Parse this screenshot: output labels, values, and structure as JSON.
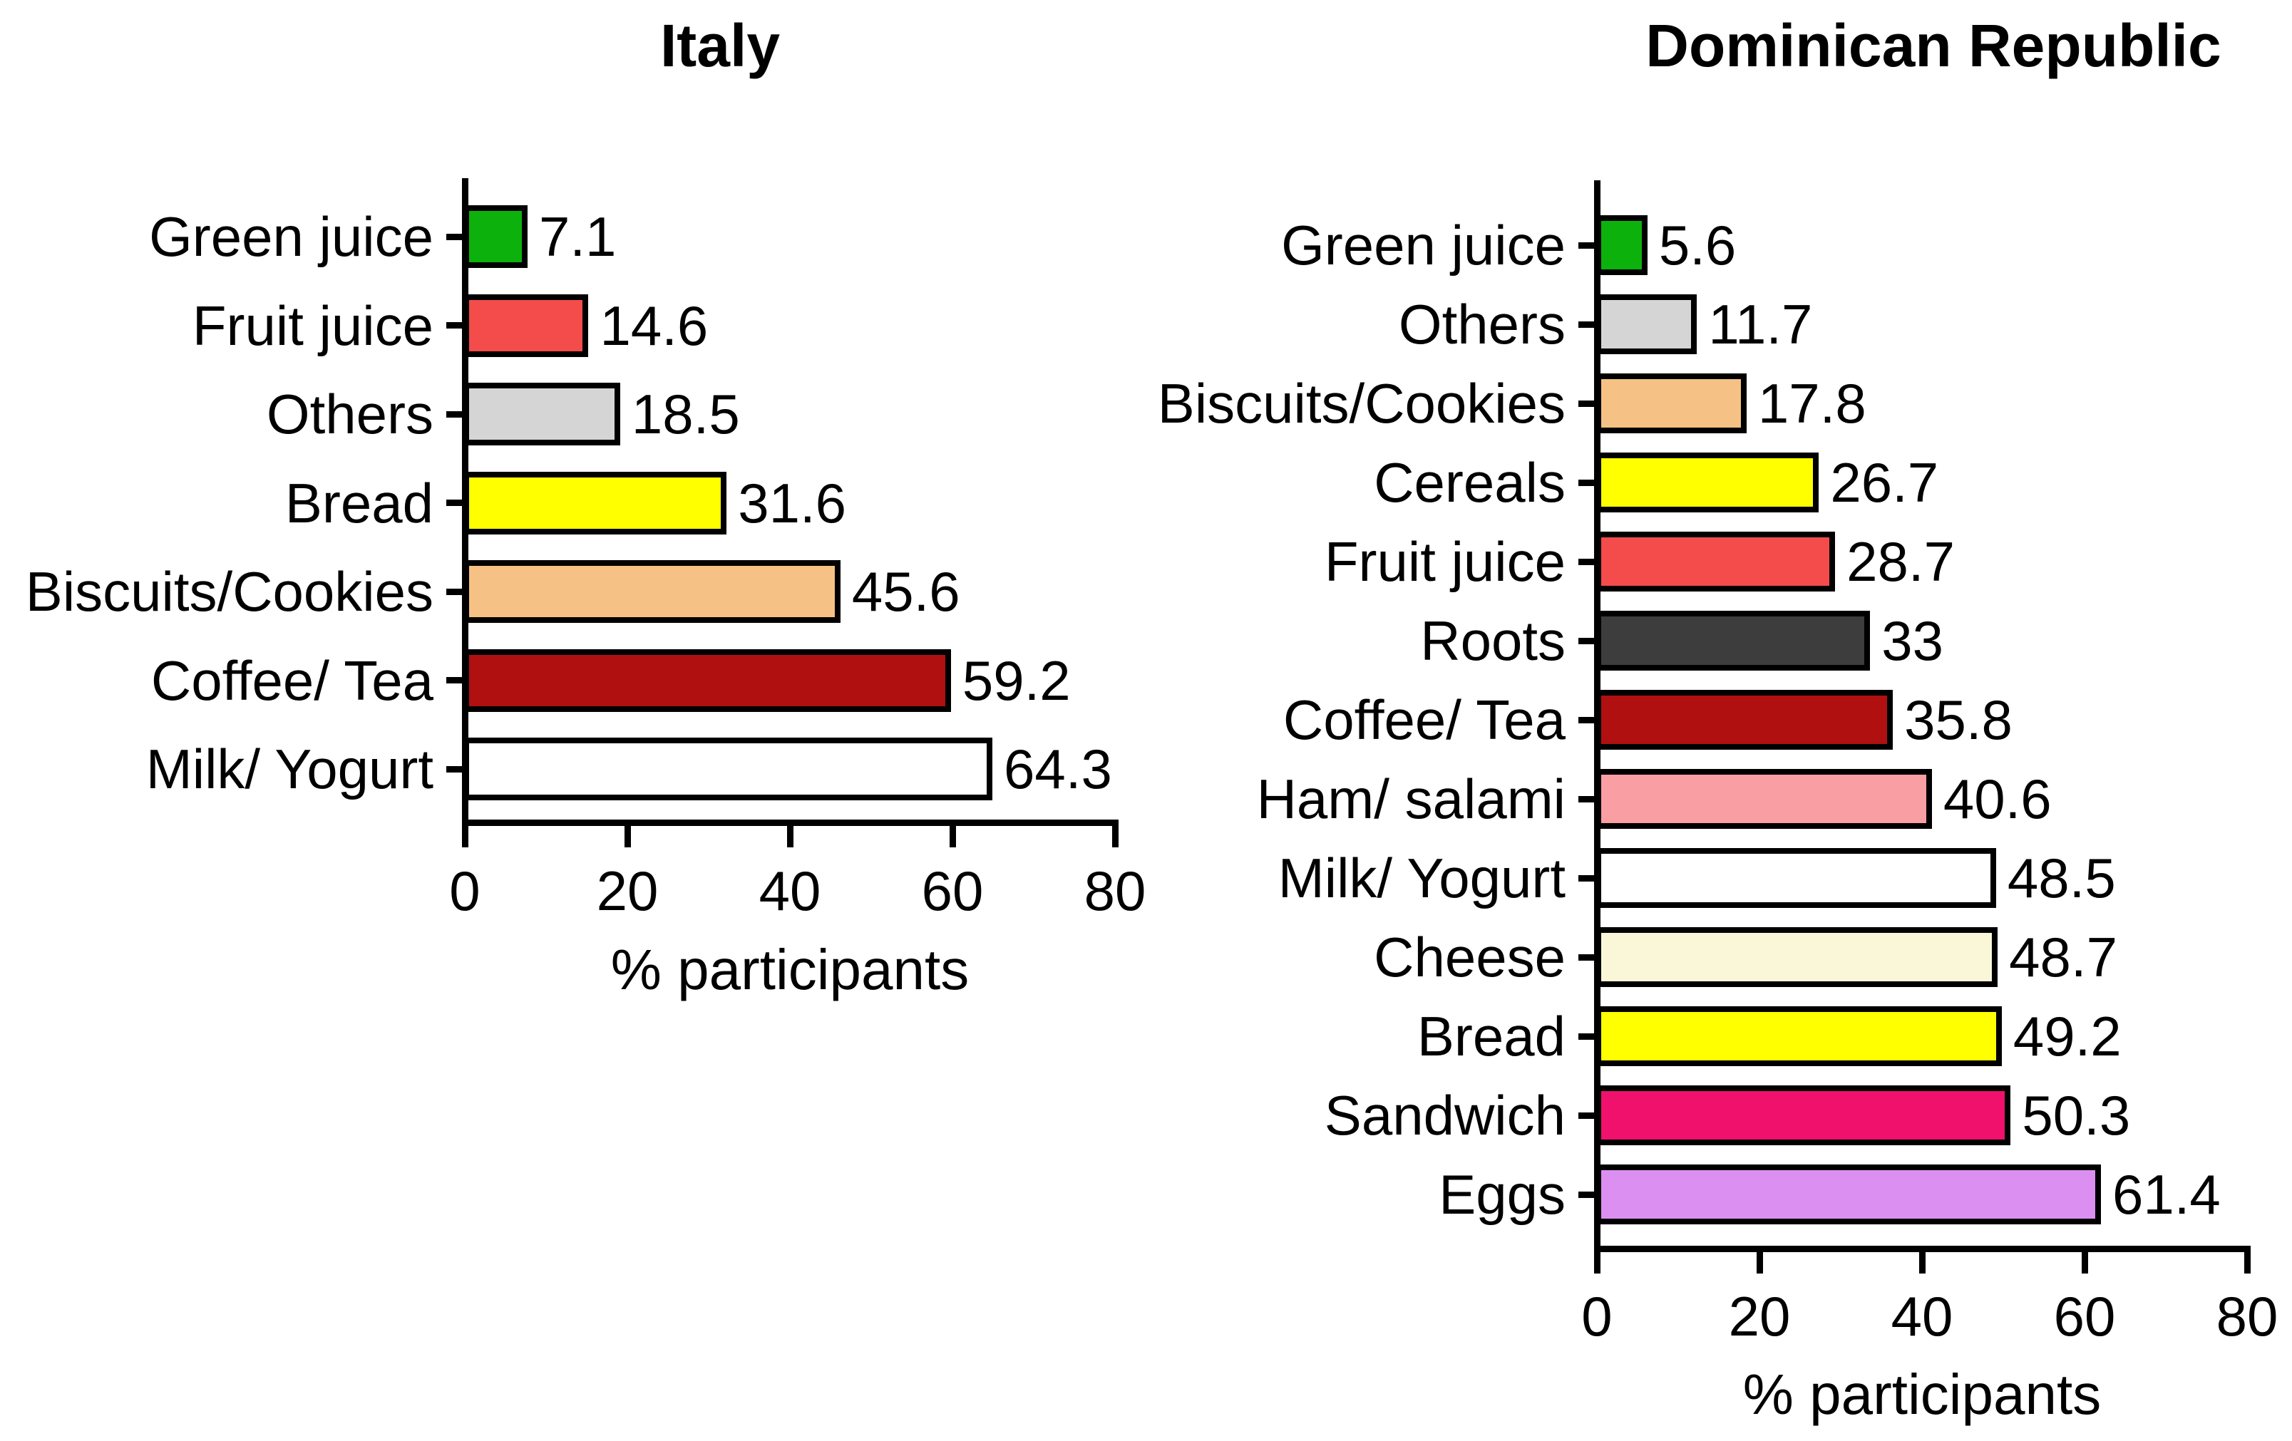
{
  "colors": {
    "background": "#FFFFFF",
    "text": "#000000",
    "axis": "#000000",
    "bar_border": "#000000"
  },
  "chart_data": [
    {
      "type": "bar",
      "orientation": "horizontal",
      "title": "Italy",
      "xlabel": "% participants",
      "xlim": [
        0,
        80
      ],
      "xticks": [
        0,
        20,
        40,
        60,
        80
      ],
      "grid": false,
      "legend": false,
      "categories": [
        "Green juice",
        "Fruit juice",
        "Others",
        "Bread",
        "Biscuits/Cookies",
        "Coffee/ Tea",
        "Milk/ Yogurt"
      ],
      "values": [
        7.1,
        14.6,
        18.5,
        31.6,
        45.6,
        59.2,
        64.3
      ],
      "value_labels": [
        "7.1",
        "14.6",
        "18.5",
        "31.6",
        "45.6",
        "59.2",
        "64.3"
      ],
      "bar_colors": [
        "#0CB10C",
        "#F44B4B",
        "#D5D5D5",
        "#FFFF00",
        "#F5C184",
        "#B01010",
        "#FFFFFF"
      ]
    },
    {
      "type": "bar",
      "orientation": "horizontal",
      "title": "Dominican Republic",
      "xlabel": "% participants",
      "xlim": [
        0,
        80
      ],
      "xticks": [
        0,
        20,
        40,
        60,
        80
      ],
      "grid": false,
      "legend": false,
      "categories": [
        "Green juice",
        "Others",
        "Biscuits/Cookies",
        "Cereals",
        "Fruit juice",
        "Roots",
        "Coffee/ Tea",
        "Ham/ salami",
        "Milk/ Yogurt",
        "Cheese",
        "Bread",
        "Sandwich",
        "Eggs"
      ],
      "values": [
        5.6,
        11.7,
        17.8,
        26.7,
        28.7,
        33,
        35.8,
        40.6,
        48.5,
        48.7,
        49.2,
        50.3,
        61.4
      ],
      "value_labels": [
        "5.6",
        "11.7",
        "17.8",
        "26.7",
        "28.7",
        "33",
        "35.8",
        "40.6",
        "48.5",
        "48.7",
        "49.2",
        "50.3",
        "61.4"
      ],
      "bar_colors": [
        "#0CB10C",
        "#D5D5D5",
        "#F5C184",
        "#FFFF00",
        "#F44B4B",
        "#3D3D3D",
        "#B01010",
        "#F99FA3",
        "#FFFFFF",
        "#FAF6D8",
        "#FFFF00",
        "#EF116B",
        "#DB8FF0"
      ]
    }
  ]
}
